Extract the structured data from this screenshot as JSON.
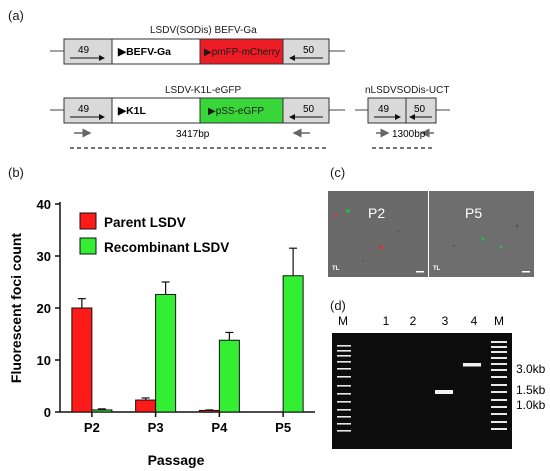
{
  "panels": {
    "a": "(a)",
    "b": "(b)",
    "c": "(c)",
    "d": "(d)"
  },
  "colors": {
    "red_box": "#ee1c24",
    "green_box": "#39d63a",
    "gray_box": "#d9d9d9",
    "parent_bar": "#ff1a1a",
    "recombinant_bar": "#33ee33"
  },
  "constructs": [
    {
      "name": "LSDV(SODis) BEFV-Ga",
      "segments": [
        {
          "label": "49",
          "color": "#d9d9d9",
          "arrow": "right"
        },
        {
          "label": "▶BEFV-Ga",
          "color": "#ffffff"
        },
        {
          "label": "▶pmFP-mCherry",
          "color": "#ee1c24"
        },
        {
          "label": "50",
          "color": "#d9d9d9",
          "arrow": "left"
        }
      ]
    },
    {
      "name": "LSDV-K1L-eGFP",
      "segments": [
        {
          "label": "49",
          "color": "#d9d9d9",
          "arrow": "right"
        },
        {
          "label": "▶K1L",
          "color": "#ffffff"
        },
        {
          "label": "▶pSS-eGFP",
          "color": "#39d63a"
        },
        {
          "label": "50",
          "color": "#d9d9d9",
          "arrow": "left"
        }
      ],
      "amplicon": "3417bp"
    },
    {
      "name": "nLSDVSODis-UCT",
      "segments": [
        {
          "label": "49",
          "color": "#d9d9d9",
          "arrow": "right"
        },
        {
          "label": "50",
          "color": "#d9d9d9",
          "arrow": "left"
        }
      ],
      "amplicon": "1300bp"
    }
  ],
  "chart_data": {
    "type": "bar",
    "ylabel": "Fluorescent foci count",
    "xlabel": "Passage",
    "categories": [
      "P2",
      "P3",
      "P4",
      "P5"
    ],
    "ylim": [
      0,
      40
    ],
    "yticks": [
      0,
      10,
      20,
      30,
      40
    ],
    "series": [
      {
        "name": "Parent LSDV",
        "color": "#ff1a1a",
        "values": [
          20,
          2.3,
          0.3,
          0
        ],
        "errors": [
          1.8,
          0.4,
          0.1,
          0
        ]
      },
      {
        "name": "Recombinant LSDV",
        "color": "#33ee33",
        "values": [
          0.4,
          22.6,
          13.8,
          26.2
        ],
        "errors": [
          0.2,
          2.4,
          1.5,
          5.3
        ]
      }
    ],
    "legend": "top-left"
  },
  "micrographs": [
    {
      "label": "P2",
      "corner": "TL"
    },
    {
      "label": "P5",
      "corner": "TL"
    }
  ],
  "gel": {
    "lanes": [
      "M",
      "1",
      "2",
      "3",
      "4",
      "M"
    ],
    "sizes": [
      "3.0kb",
      "1.5kb",
      "1.0kb"
    ]
  }
}
